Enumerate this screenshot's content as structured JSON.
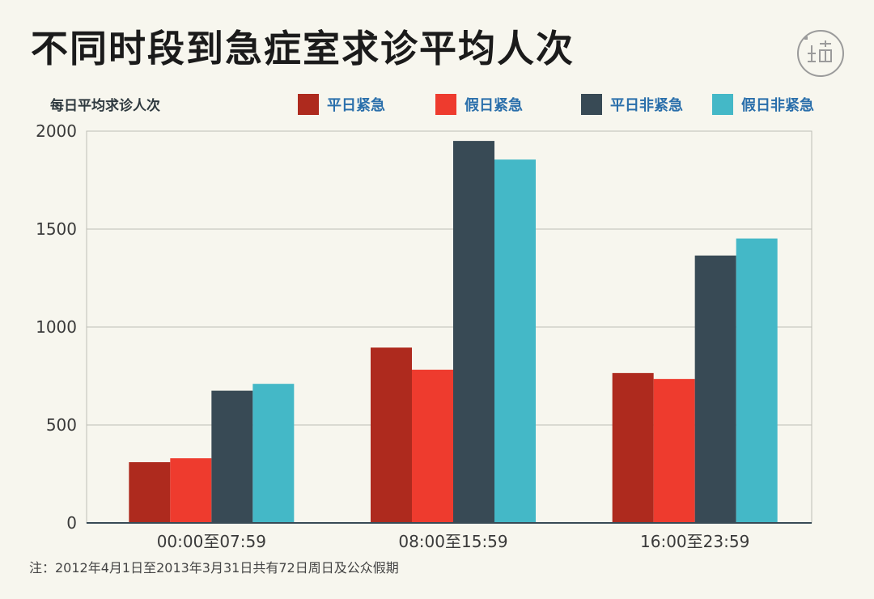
{
  "title": "不同时段到急症室求诊平均人次",
  "note": "注：2012年4月1日至2013年3月31日共有72日周日及公众假期",
  "chart_data": {
    "type": "bar",
    "title": "不同时段到急症室求诊平均人次",
    "ylabel": "每日平均求诊人次",
    "xlabel": "",
    "ylim": [
      0,
      2000
    ],
    "yticks": [
      0,
      500,
      1000,
      1500,
      2000
    ],
    "grid": true,
    "legend_position": "top-right",
    "categories": [
      "00:00至07:59",
      "08:00至15:59",
      "16:00至23:59"
    ],
    "series": [
      {
        "name": "平日紧急",
        "color": "#ae2a1e",
        "values": [
          310,
          895,
          765
        ]
      },
      {
        "name": "假日紧急",
        "color": "#ee3b2e",
        "values": [
          330,
          782,
          735
        ]
      },
      {
        "name": "平日非紧急",
        "color": "#384a55",
        "values": [
          675,
          1950,
          1365
        ]
      },
      {
        "name": "假日非紧急",
        "color": "#44b8c7",
        "values": [
          710,
          1855,
          1452
        ]
      }
    ]
  }
}
